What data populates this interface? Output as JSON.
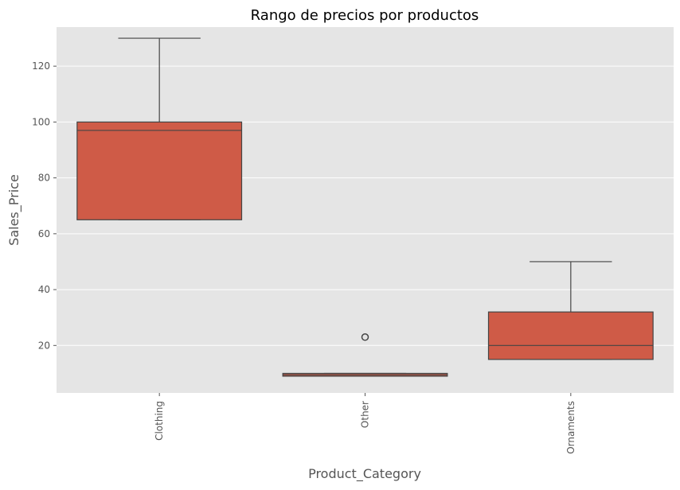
{
  "chart_data": {
    "type": "box",
    "title": "Rango de precios por productos",
    "xlabel": "Product_Category",
    "ylabel": "Sales_Price",
    "categories": [
      "Clothing",
      "Other",
      "Ornaments"
    ],
    "ylim": [
      3,
      134
    ],
    "yticks": [
      20,
      40,
      60,
      80,
      100,
      120
    ],
    "grid": true,
    "boxes": [
      {
        "category": "Clothing",
        "whisker_low": 65,
        "q1": 65,
        "median": 97,
        "q3": 100,
        "whisker_high": 130,
        "outliers": []
      },
      {
        "category": "Other",
        "whisker_low": 9,
        "q1": 9,
        "median": 9.5,
        "q3": 10,
        "whisker_high": 10,
        "outliers": [
          23
        ]
      },
      {
        "category": "Ornaments",
        "whisker_low": 15,
        "q1": 15,
        "median": 20,
        "q3": 32,
        "whisker_high": 50,
        "outliers": []
      }
    ],
    "colors": {
      "box_fill": "#cf5b47",
      "line": "#444444",
      "background": "#e5e5e5",
      "grid": "#ffffff"
    }
  }
}
